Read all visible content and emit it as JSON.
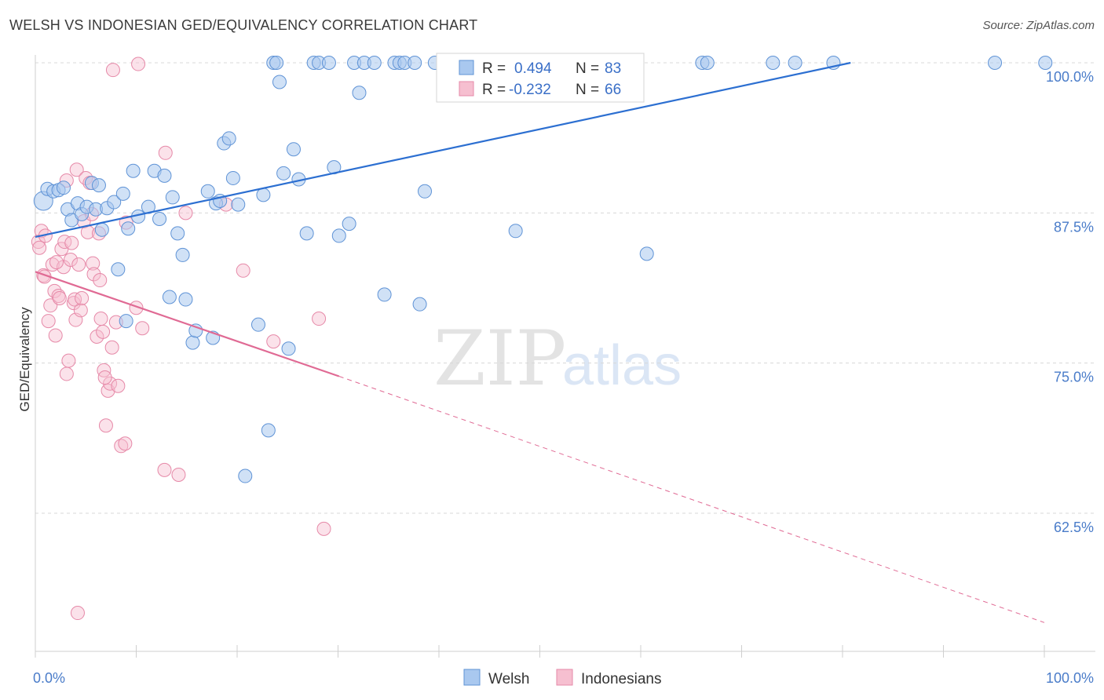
{
  "title": "WELSH VS INDONESIAN GED/EQUIVALENCY CORRELATION CHART",
  "source": "Source: ZipAtlas.com",
  "watermark": {
    "zip": "ZIP",
    "atlas": "atlas"
  },
  "colors": {
    "welsh_fill": "#a9c8ef",
    "welsh_stroke": "#5f93d6",
    "welsh_line": "#2c6fd1",
    "indo_fill": "#f6bfd0",
    "indo_stroke": "#e689a8",
    "indo_line": "#e06a94",
    "grid": "#d8d8d8",
    "axis_text": "#4a7cc9"
  },
  "legend": {
    "welsh": {
      "r_label": "R =",
      "r_value": "0.494",
      "n_label": "N =",
      "n_value": "83"
    },
    "indo": {
      "r_label": "R =",
      "r_value": "-0.232",
      "n_label": "N =",
      "n_value": "66"
    }
  },
  "bottom_legend": [
    "Welsh",
    "Indonesians"
  ],
  "chart_data": {
    "type": "scatter",
    "title": "WELSH VS INDONESIAN GED/EQUIVALENCY CORRELATION CHART",
    "xlabel": "",
    "ylabel": "GED/Equivalency",
    "x_range": [
      0,
      100
    ],
    "y_range": [
      50.5,
      101.5
    ],
    "y_ticks": [
      62.5,
      75.0,
      87.5,
      100.0
    ],
    "y_tick_labels": [
      "62.5%",
      "75.0%",
      "87.5%",
      "100.0%"
    ],
    "x_tick_labels": [
      "0.0%",
      "100.0%"
    ],
    "grid": "horizontal dashed",
    "legend_position": "top-center",
    "series": [
      {
        "name": "Welsh",
        "r": 0.494,
        "n": 83,
        "trend": {
          "x0": 0,
          "y0": 85.5,
          "x1": 80.8,
          "y1": 100.0,
          "style": "solid"
        },
        "points": [
          [
            0.8,
            88.5
          ],
          [
            1.2,
            89.5
          ],
          [
            1.8,
            89.3
          ],
          [
            2.3,
            89.4
          ],
          [
            2.8,
            89.6
          ],
          [
            3.2,
            87.8
          ],
          [
            3.6,
            86.9
          ],
          [
            4.2,
            88.3
          ],
          [
            4.6,
            87.4
          ],
          [
            5.1,
            88.0
          ],
          [
            5.6,
            90.0
          ],
          [
            6.0,
            87.8
          ],
          [
            6.3,
            89.8
          ],
          [
            6.6,
            86.1
          ],
          [
            7.1,
            87.9
          ],
          [
            7.8,
            88.4
          ],
          [
            8.2,
            82.8
          ],
          [
            8.7,
            89.1
          ],
          [
            9.2,
            86.2
          ],
          [
            9.7,
            91.0
          ],
          [
            10.2,
            87.2
          ],
          [
            11.2,
            88.0
          ],
          [
            11.8,
            91.0
          ],
          [
            12.3,
            87.0
          ],
          [
            12.8,
            90.6
          ],
          [
            13.3,
            80.5
          ],
          [
            13.6,
            88.8
          ],
          [
            14.1,
            85.8
          ],
          [
            14.6,
            84.0
          ],
          [
            14.9,
            80.3
          ],
          [
            15.6,
            76.7
          ],
          [
            15.9,
            77.7
          ],
          [
            17.1,
            89.3
          ],
          [
            17.6,
            77.1
          ],
          [
            17.9,
            88.3
          ],
          [
            18.3,
            88.5
          ],
          [
            18.7,
            93.3
          ],
          [
            19.2,
            93.7
          ],
          [
            19.6,
            90.4
          ],
          [
            20.1,
            88.2
          ],
          [
            20.8,
            65.6
          ],
          [
            22.1,
            78.2
          ],
          [
            22.6,
            89.0
          ],
          [
            23.1,
            69.4
          ],
          [
            23.6,
            100.0
          ],
          [
            23.9,
            100.0
          ],
          [
            24.2,
            98.4
          ],
          [
            24.6,
            90.8
          ],
          [
            25.1,
            76.2
          ],
          [
            25.6,
            92.8
          ],
          [
            26.1,
            90.3
          ],
          [
            26.9,
            85.8
          ],
          [
            27.6,
            100.0
          ],
          [
            28.1,
            100.0
          ],
          [
            29.1,
            100.0
          ],
          [
            29.6,
            91.3
          ],
          [
            30.1,
            85.6
          ],
          [
            31.1,
            86.6
          ],
          [
            31.6,
            100.0
          ],
          [
            32.1,
            97.5
          ],
          [
            32.6,
            100.0
          ],
          [
            33.6,
            100.0
          ],
          [
            34.6,
            80.7
          ],
          [
            35.6,
            100.0
          ],
          [
            36.1,
            100.0
          ],
          [
            36.6,
            100.0
          ],
          [
            37.6,
            100.0
          ],
          [
            38.1,
            79.9
          ],
          [
            38.6,
            89.3
          ],
          [
            39.6,
            100.0
          ],
          [
            40.6,
            100.0
          ],
          [
            47.6,
            100.0
          ],
          [
            48.1,
            100.0
          ],
          [
            47.6,
            86.0
          ],
          [
            60.6,
            84.1
          ],
          [
            66.1,
            100.0
          ],
          [
            66.6,
            100.0
          ],
          [
            73.1,
            100.0
          ],
          [
            75.3,
            100.0
          ],
          [
            79.1,
            100.0
          ],
          [
            95.1,
            100.0
          ],
          [
            100.1,
            100.0
          ],
          [
            9.0,
            78.5
          ]
        ]
      },
      {
        "name": "Indonesians",
        "r": -0.232,
        "n": 66,
        "trend": {
          "x0": 0,
          "y0": 82.6,
          "x1": 30.1,
          "y1": 73.9,
          "style": "solid",
          "ext_x1": 100.0,
          "ext_y1": 53.4,
          "ext_style": "dashed"
        },
        "points": [
          [
            0.3,
            85.1
          ],
          [
            0.4,
            84.6
          ],
          [
            0.6,
            86.0
          ],
          [
            0.8,
            82.3
          ],
          [
            1.0,
            85.6
          ],
          [
            1.3,
            78.5
          ],
          [
            1.5,
            79.8
          ],
          [
            1.7,
            83.2
          ],
          [
            1.9,
            81.0
          ],
          [
            2.0,
            77.3
          ],
          [
            2.3,
            80.6
          ],
          [
            2.4,
            80.4
          ],
          [
            2.6,
            84.5
          ],
          [
            2.8,
            83.0
          ],
          [
            2.9,
            85.1
          ],
          [
            3.1,
            90.2
          ],
          [
            3.1,
            74.1
          ],
          [
            3.3,
            75.2
          ],
          [
            3.5,
            83.6
          ],
          [
            3.6,
            85.0
          ],
          [
            3.8,
            80.0
          ],
          [
            3.9,
            80.3
          ],
          [
            4.0,
            78.6
          ],
          [
            4.1,
            91.1
          ],
          [
            4.3,
            83.2
          ],
          [
            4.5,
            79.4
          ],
          [
            4.6,
            80.4
          ],
          [
            4.8,
            86.8
          ],
          [
            5.0,
            90.4
          ],
          [
            5.2,
            85.9
          ],
          [
            5.4,
            90.0
          ],
          [
            5.6,
            87.4
          ],
          [
            5.7,
            83.3
          ],
          [
            5.8,
            82.4
          ],
          [
            6.1,
            77.2
          ],
          [
            6.3,
            85.8
          ],
          [
            6.4,
            81.9
          ],
          [
            6.5,
            78.7
          ],
          [
            6.7,
            77.6
          ],
          [
            6.8,
            74.4
          ],
          [
            7.0,
            69.8
          ],
          [
            7.2,
            72.7
          ],
          [
            7.4,
            73.3
          ],
          [
            7.6,
            76.3
          ],
          [
            7.7,
            99.4
          ],
          [
            8.0,
            78.4
          ],
          [
            8.2,
            73.1
          ],
          [
            8.5,
            68.1
          ],
          [
            8.9,
            68.3
          ],
          [
            9.0,
            86.7
          ],
          [
            10.0,
            79.6
          ],
          [
            10.2,
            99.9
          ],
          [
            10.6,
            77.9
          ],
          [
            12.8,
            66.1
          ],
          [
            12.9,
            92.5
          ],
          [
            14.2,
            65.7
          ],
          [
            14.9,
            87.5
          ],
          [
            18.9,
            88.2
          ],
          [
            20.6,
            82.7
          ],
          [
            23.6,
            76.8
          ],
          [
            28.1,
            78.7
          ],
          [
            28.6,
            61.2
          ],
          [
            4.2,
            54.2
          ],
          [
            0.9,
            82.2
          ],
          [
            2.1,
            83.4
          ],
          [
            6.9,
            73.8
          ]
        ]
      }
    ]
  }
}
